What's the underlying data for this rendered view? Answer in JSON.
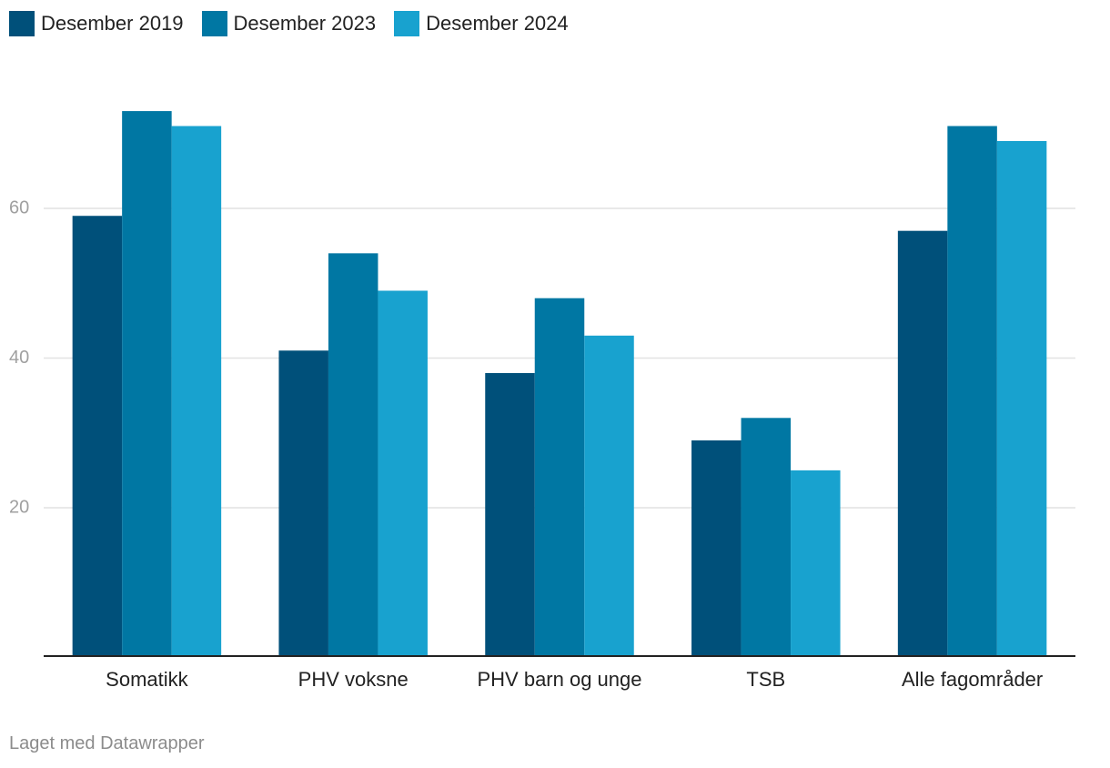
{
  "legend": [
    {
      "label": "Desember 2019",
      "color": "#00507a"
    },
    {
      "label": "Desember 2023",
      "color": "#0077a3"
    },
    {
      "label": "Desember 2024",
      "color": "#18a2cf"
    }
  ],
  "footer": {
    "credit": "Laget med Datawrapper"
  },
  "chart_data": {
    "type": "bar",
    "categories": [
      "Somatikk",
      "PHV voksne",
      "PHV barn og unge",
      "TSB",
      "Alle fagområder"
    ],
    "series": [
      {
        "name": "Desember 2019",
        "values": [
          59,
          41,
          38,
          29,
          57
        ]
      },
      {
        "name": "Desember 2023",
        "values": [
          73,
          54,
          48,
          32,
          71
        ]
      },
      {
        "name": "Desember 2024",
        "values": [
          71,
          49,
          43,
          25,
          69
        ]
      }
    ],
    "yticks": [
      20,
      40,
      60
    ],
    "ylim": [
      3,
      80
    ],
    "grid": true,
    "legend_position": "top-left",
    "title": "",
    "xlabel": "",
    "ylabel": ""
  }
}
